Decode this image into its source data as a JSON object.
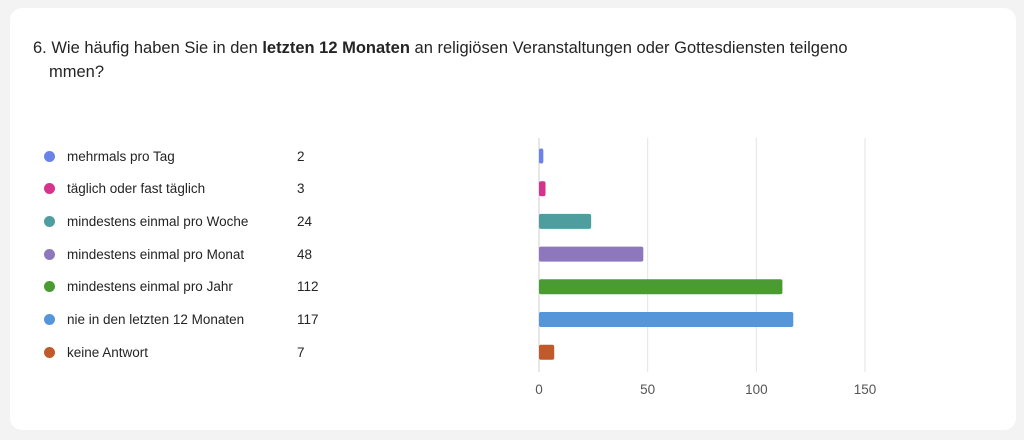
{
  "question": {
    "prefix": "6. Wie häufig haben Sie in den ",
    "bold": "letzten 12 Monaten",
    "suffix": " an religiösen Veranstaltungen oder Gottesdiensten teilgeno",
    "continuation": "mmen?"
  },
  "chart_data": {
    "type": "bar",
    "orientation": "horizontal",
    "categories": [
      "mehrmals pro Tag",
      "täglich oder fast täglich",
      "mindestens einmal pro Woche",
      "mindestens einmal pro Monat",
      "mindestens einmal pro Jahr",
      "nie in den letzten 12 Monaten",
      "keine Antwort"
    ],
    "values": [
      2,
      3,
      24,
      48,
      112,
      117,
      7
    ],
    "colors": [
      "#6b83e8",
      "#d6338f",
      "#4e9ea0",
      "#8d78bd",
      "#4a9c32",
      "#5595d9",
      "#c15a2a"
    ],
    "xlim": [
      0,
      150
    ],
    "xticks": [
      0,
      50,
      100,
      150
    ],
    "grid": true,
    "legend": "left"
  }
}
